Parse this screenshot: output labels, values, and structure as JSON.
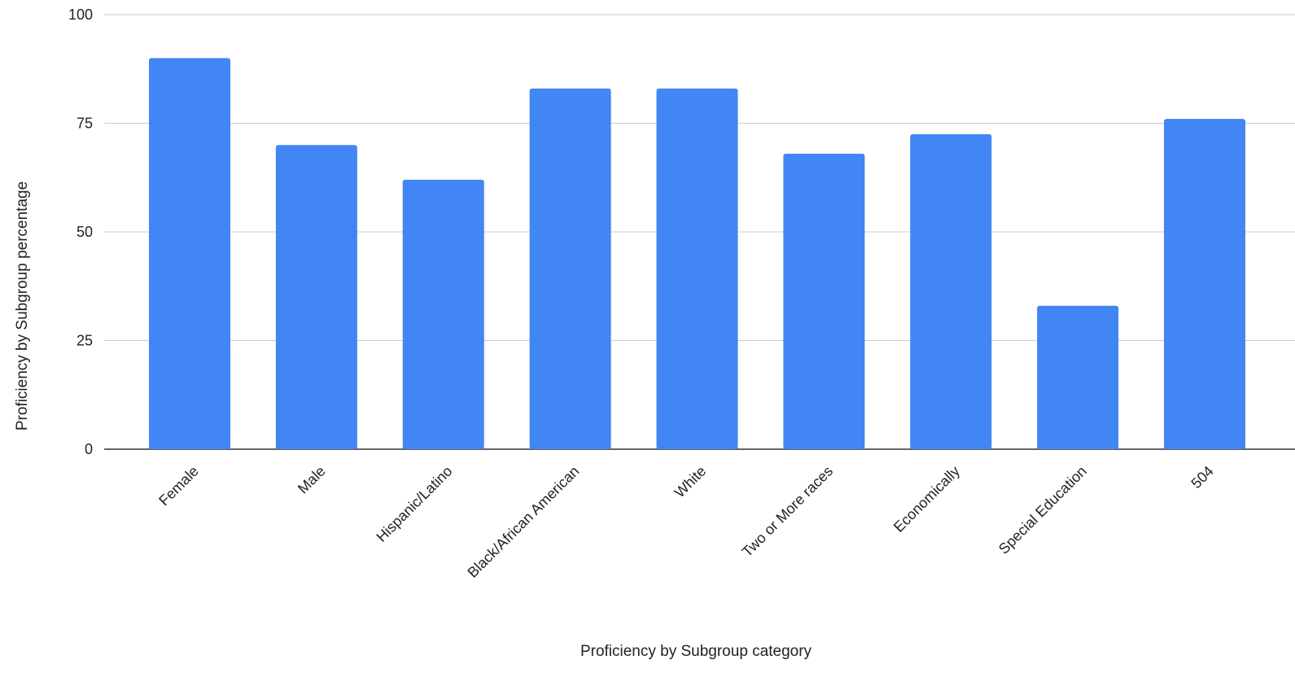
{
  "chart_data": {
    "type": "bar",
    "title": "",
    "xlabel": "Proficiency by Subgroup category",
    "ylabel": "Proficiency by Subgroup percentage",
    "categories": [
      "Female",
      "Male",
      "Hispanic/Latino",
      "Black/African American",
      "White",
      "Two or More races",
      "Economically",
      "Special Education",
      "504"
    ],
    "values": [
      90,
      70,
      62,
      83,
      83,
      68,
      72.5,
      33,
      76
    ],
    "ylim": [
      0,
      100
    ],
    "yticks": [
      "0",
      "25",
      "50",
      "75",
      "100"
    ],
    "grid": true,
    "legend": "none",
    "colors": {
      "bar": "#4285f4",
      "grid": "#cccccc",
      "axis": "#333333"
    }
  }
}
